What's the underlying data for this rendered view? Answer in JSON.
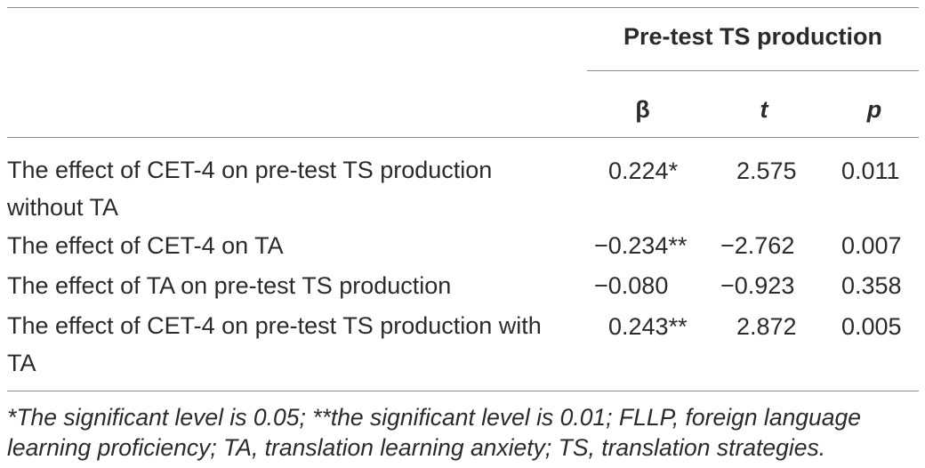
{
  "table": {
    "group_header": "Pre-test TS production",
    "columns": [
      "β",
      "t",
      "p"
    ],
    "rows": [
      {
        "label": "The effect of CET-4 on pre-test TS production without TA",
        "beta": "0.224*",
        "t": "2.575",
        "p": "0.011"
      },
      {
        "label": "The effect of CET-4 on TA",
        "beta": "−0.234**",
        "t": "−2.762",
        "p": "0.007"
      },
      {
        "label": "The effect of TA on pre-test TS production",
        "beta": "−0.080",
        "t": "−0.923",
        "p": "0.358"
      },
      {
        "label": "The effect of CET-4 on pre-test TS production with TA",
        "beta": "0.243**",
        "t": "2.872",
        "p": "0.005"
      }
    ],
    "footnote": "*The significant level is 0.05; **the significant level is 0.01; FLLP, foreign language learning proficiency; TA, translation learning anxiety; TS, translation strategies."
  }
}
